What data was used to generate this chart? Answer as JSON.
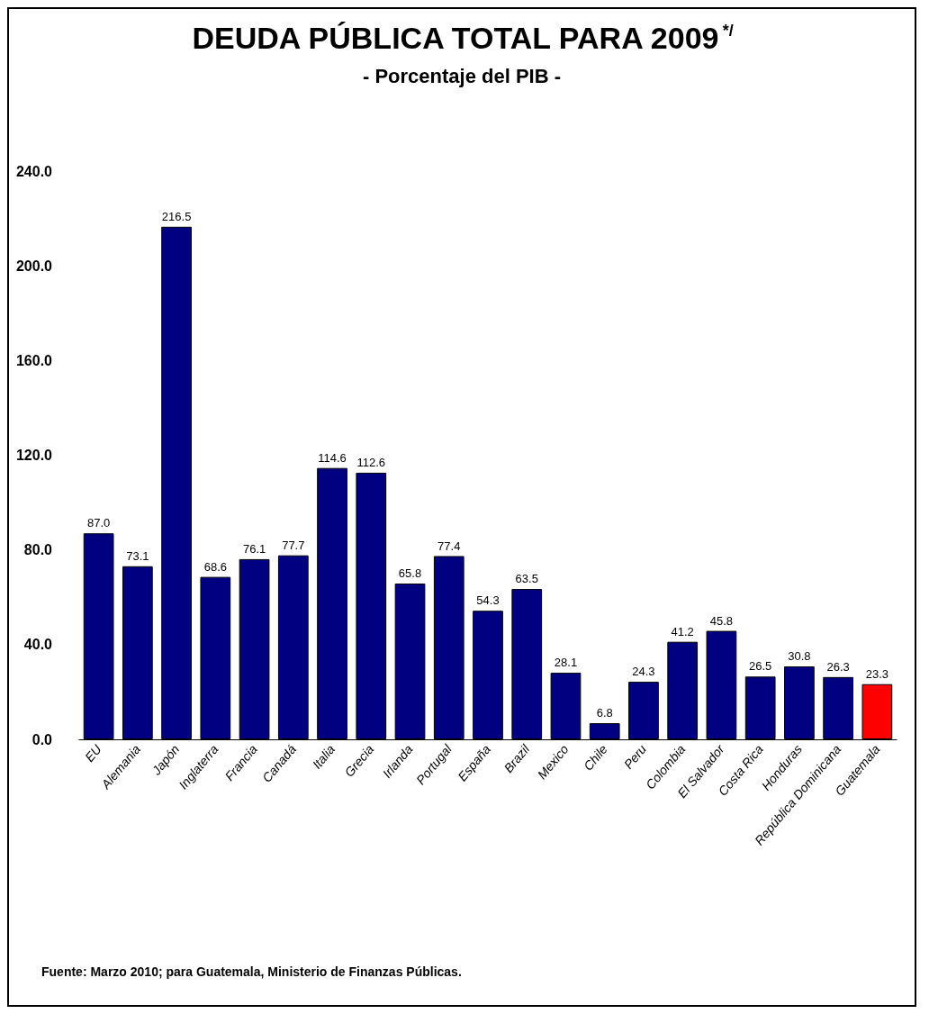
{
  "chart_data": {
    "type": "bar",
    "title": "DEUDA PÚBLICA TOTAL PARA 2009$^{*/}$",
    "subtitle": "- Porcentaje del PIB -",
    "categories": [
      "EU",
      "Alemania",
      "Japón",
      "Inglaterra",
      "Francia",
      "Canadá",
      "Italia",
      "Grecia",
      "Irlanda",
      "Portugal",
      "España",
      "Brazil",
      "Mexico",
      "Chile",
      "Peru",
      "Colombia",
      "El Salvador",
      "Costa Rica",
      "Honduras",
      "República Dominicana",
      "Guatemala"
    ],
    "values": [
      87.0,
      73.1,
      216.5,
      68.6,
      76.1,
      77.7,
      114.6,
      112.6,
      65.8,
      77.4,
      54.3,
      63.5,
      28.1,
      6.8,
      24.3,
      41.2,
      45.8,
      26.5,
      30.8,
      26.3,
      23.3
    ],
    "value_labels": [
      "87.0",
      "73.1",
      "216.5",
      "68.6",
      "76.1",
      "77.7",
      "114.6",
      "112.6",
      "65.8",
      "77.4",
      "54.3",
      "63.5",
      "28.1",
      "6.8",
      "24.3",
      "41.2",
      "45.8",
      "26.5",
      "30.8",
      "26.3",
      "23.3"
    ],
    "colors": [
      "#000080",
      "#000080",
      "#000080",
      "#000080",
      "#000080",
      "#000080",
      "#000080",
      "#000080",
      "#000080",
      "#000080",
      "#000080",
      "#000080",
      "#000080",
      "#000080",
      "#000080",
      "#000080",
      "#000080",
      "#000080",
      "#000080",
      "#000080",
      "#ff0000"
    ],
    "ylim": [
      0,
      240
    ],
    "yticks": [
      {
        "value": 0,
        "label": "0.0"
      },
      {
        "value": 40,
        "label": "40.0"
      },
      {
        "value": 80,
        "label": "80.0"
      },
      {
        "value": 120,
        "label": "120.0"
      },
      {
        "value": 160,
        "label": "160.0"
      },
      {
        "value": 200,
        "label": "200.0"
      },
      {
        "value": 240,
        "label": "240.0"
      }
    ],
    "grid": false,
    "annotations": [
      "Fuente: Marzo 2010; para Guatemala, Ministerio de Finanzas Públicas."
    ]
  }
}
